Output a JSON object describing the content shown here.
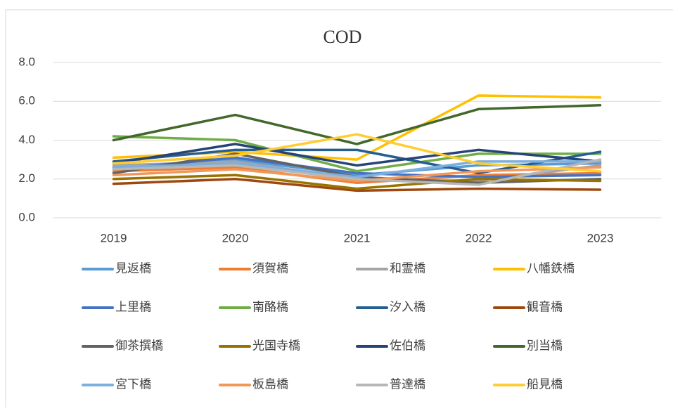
{
  "chart_data": {
    "type": "line",
    "title": "COD",
    "categories": [
      "2019",
      "2020",
      "2021",
      "2022",
      "2023"
    ],
    "ylim": [
      0,
      8
    ],
    "yticks": [
      {
        "value": 0,
        "label": "0.0"
      },
      {
        "value": 2,
        "label": "2.0"
      },
      {
        "value": 4,
        "label": "4.0"
      },
      {
        "value": 6,
        "label": "6.0"
      },
      {
        "value": 8,
        "label": "8.0"
      }
    ],
    "grid": true,
    "legend": "bottom",
    "series": [
      {
        "name": "見返橋",
        "color": "#5B9BD5",
        "values": [
          2.6,
          3.0,
          2.2,
          2.7,
          2.8
        ]
      },
      {
        "name": "須賀橋",
        "color": "#ED7D31",
        "values": [
          2.4,
          2.6,
          1.8,
          2.2,
          2.3
        ]
      },
      {
        "name": "和霊橋",
        "color": "#A5A5A5",
        "values": [
          2.7,
          2.9,
          2.0,
          1.9,
          2.7
        ]
      },
      {
        "name": "八幡鉄橋",
        "color": "#FFC000",
        "values": [
          3.1,
          3.4,
          3.0,
          6.3,
          6.2
        ]
      },
      {
        "name": "上里橋",
        "color": "#4472C4",
        "values": [
          2.5,
          3.1,
          2.3,
          2.1,
          2.2
        ]
      },
      {
        "name": "南酪橋",
        "color": "#70AD47",
        "values": [
          4.2,
          4.0,
          2.4,
          3.3,
          3.3
        ]
      },
      {
        "name": "汐入橋",
        "color": "#255E91",
        "values": [
          2.9,
          3.5,
          3.5,
          2.3,
          3.4
        ]
      },
      {
        "name": "観音橋",
        "color": "#9E480E",
        "values": [
          1.75,
          2.0,
          1.4,
          1.5,
          1.45
        ]
      },
      {
        "name": "御茶撰橋",
        "color": "#636363",
        "values": [
          2.3,
          3.3,
          2.1,
          1.8,
          2.0
        ]
      },
      {
        "name": "光国寺橋",
        "color": "#997300",
        "values": [
          2.0,
          2.2,
          1.5,
          2.0,
          1.9
        ]
      },
      {
        "name": "佐伯橋",
        "color": "#264478",
        "values": [
          2.8,
          3.8,
          2.7,
          3.5,
          2.9
        ]
      },
      {
        "name": "別当橋",
        "color": "#43682B",
        "values": [
          4.0,
          5.3,
          3.8,
          5.6,
          5.8
        ]
      },
      {
        "name": "宮下橋",
        "color": "#7CAFDD",
        "values": [
          2.6,
          2.8,
          2.1,
          2.9,
          2.9
        ]
      },
      {
        "name": "板島橋",
        "color": "#F1975A",
        "values": [
          2.2,
          2.5,
          1.9,
          2.4,
          2.6
        ]
      },
      {
        "name": "普達橋",
        "color": "#B7B7B7",
        "values": [
          2.5,
          2.7,
          2.0,
          1.7,
          3.0
        ]
      },
      {
        "name": "船見橋",
        "color": "#FFCD33",
        "values": [
          2.8,
          3.2,
          4.3,
          2.8,
          2.4
        ]
      }
    ]
  }
}
